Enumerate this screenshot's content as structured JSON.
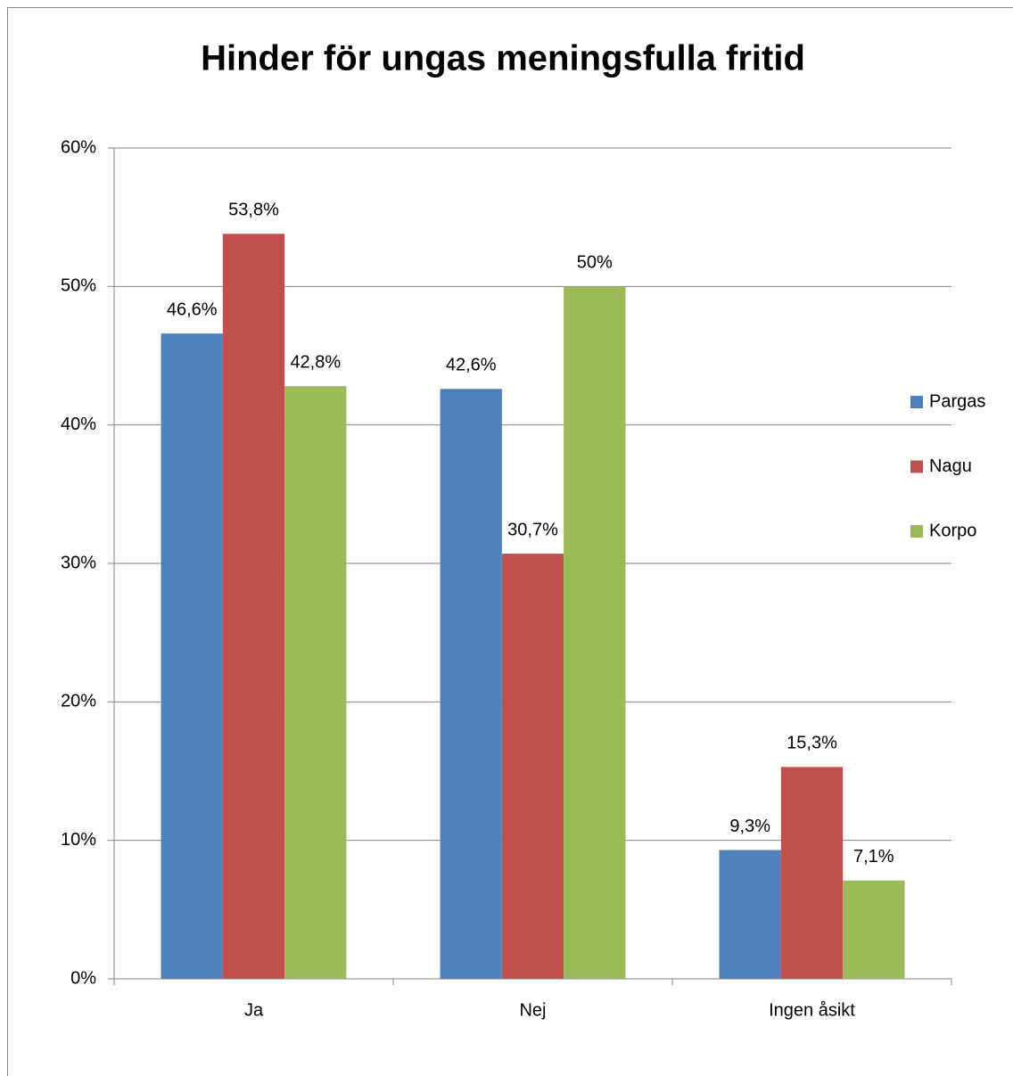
{
  "chart_data": {
    "type": "bar",
    "title": "Hinder för ungas meningsfulla fritid",
    "categories": [
      "Ja",
      "Nej",
      "Ingen åsikt"
    ],
    "series": [
      {
        "name": "Pargas",
        "color": "#4f81bd",
        "values": [
          46.6,
          42.6,
          9.3
        ],
        "value_labels": [
          "46,6%",
          "42,6%",
          "9,3%"
        ]
      },
      {
        "name": "Nagu",
        "color": "#c0504d",
        "values": [
          53.8,
          30.7,
          15.3
        ],
        "value_labels": [
          "53,8%",
          "30,7%",
          "15,3%"
        ]
      },
      {
        "name": "Korpo",
        "color": "#9bbb59",
        "values": [
          42.8,
          50,
          7.1
        ],
        "value_labels": [
          "42,8%",
          "50%",
          "7,1%"
        ]
      }
    ],
    "ylim": [
      0,
      60
    ],
    "yticks": [
      {
        "value": 0,
        "label": "0%"
      },
      {
        "value": 10,
        "label": "10%"
      },
      {
        "value": 20,
        "label": "20%"
      },
      {
        "value": 30,
        "label": "30%"
      },
      {
        "value": 40,
        "label": "40%"
      },
      {
        "value": 50,
        "label": "50%"
      },
      {
        "value": 60,
        "label": "60%"
      }
    ],
    "grid": true,
    "legend": "right"
  }
}
